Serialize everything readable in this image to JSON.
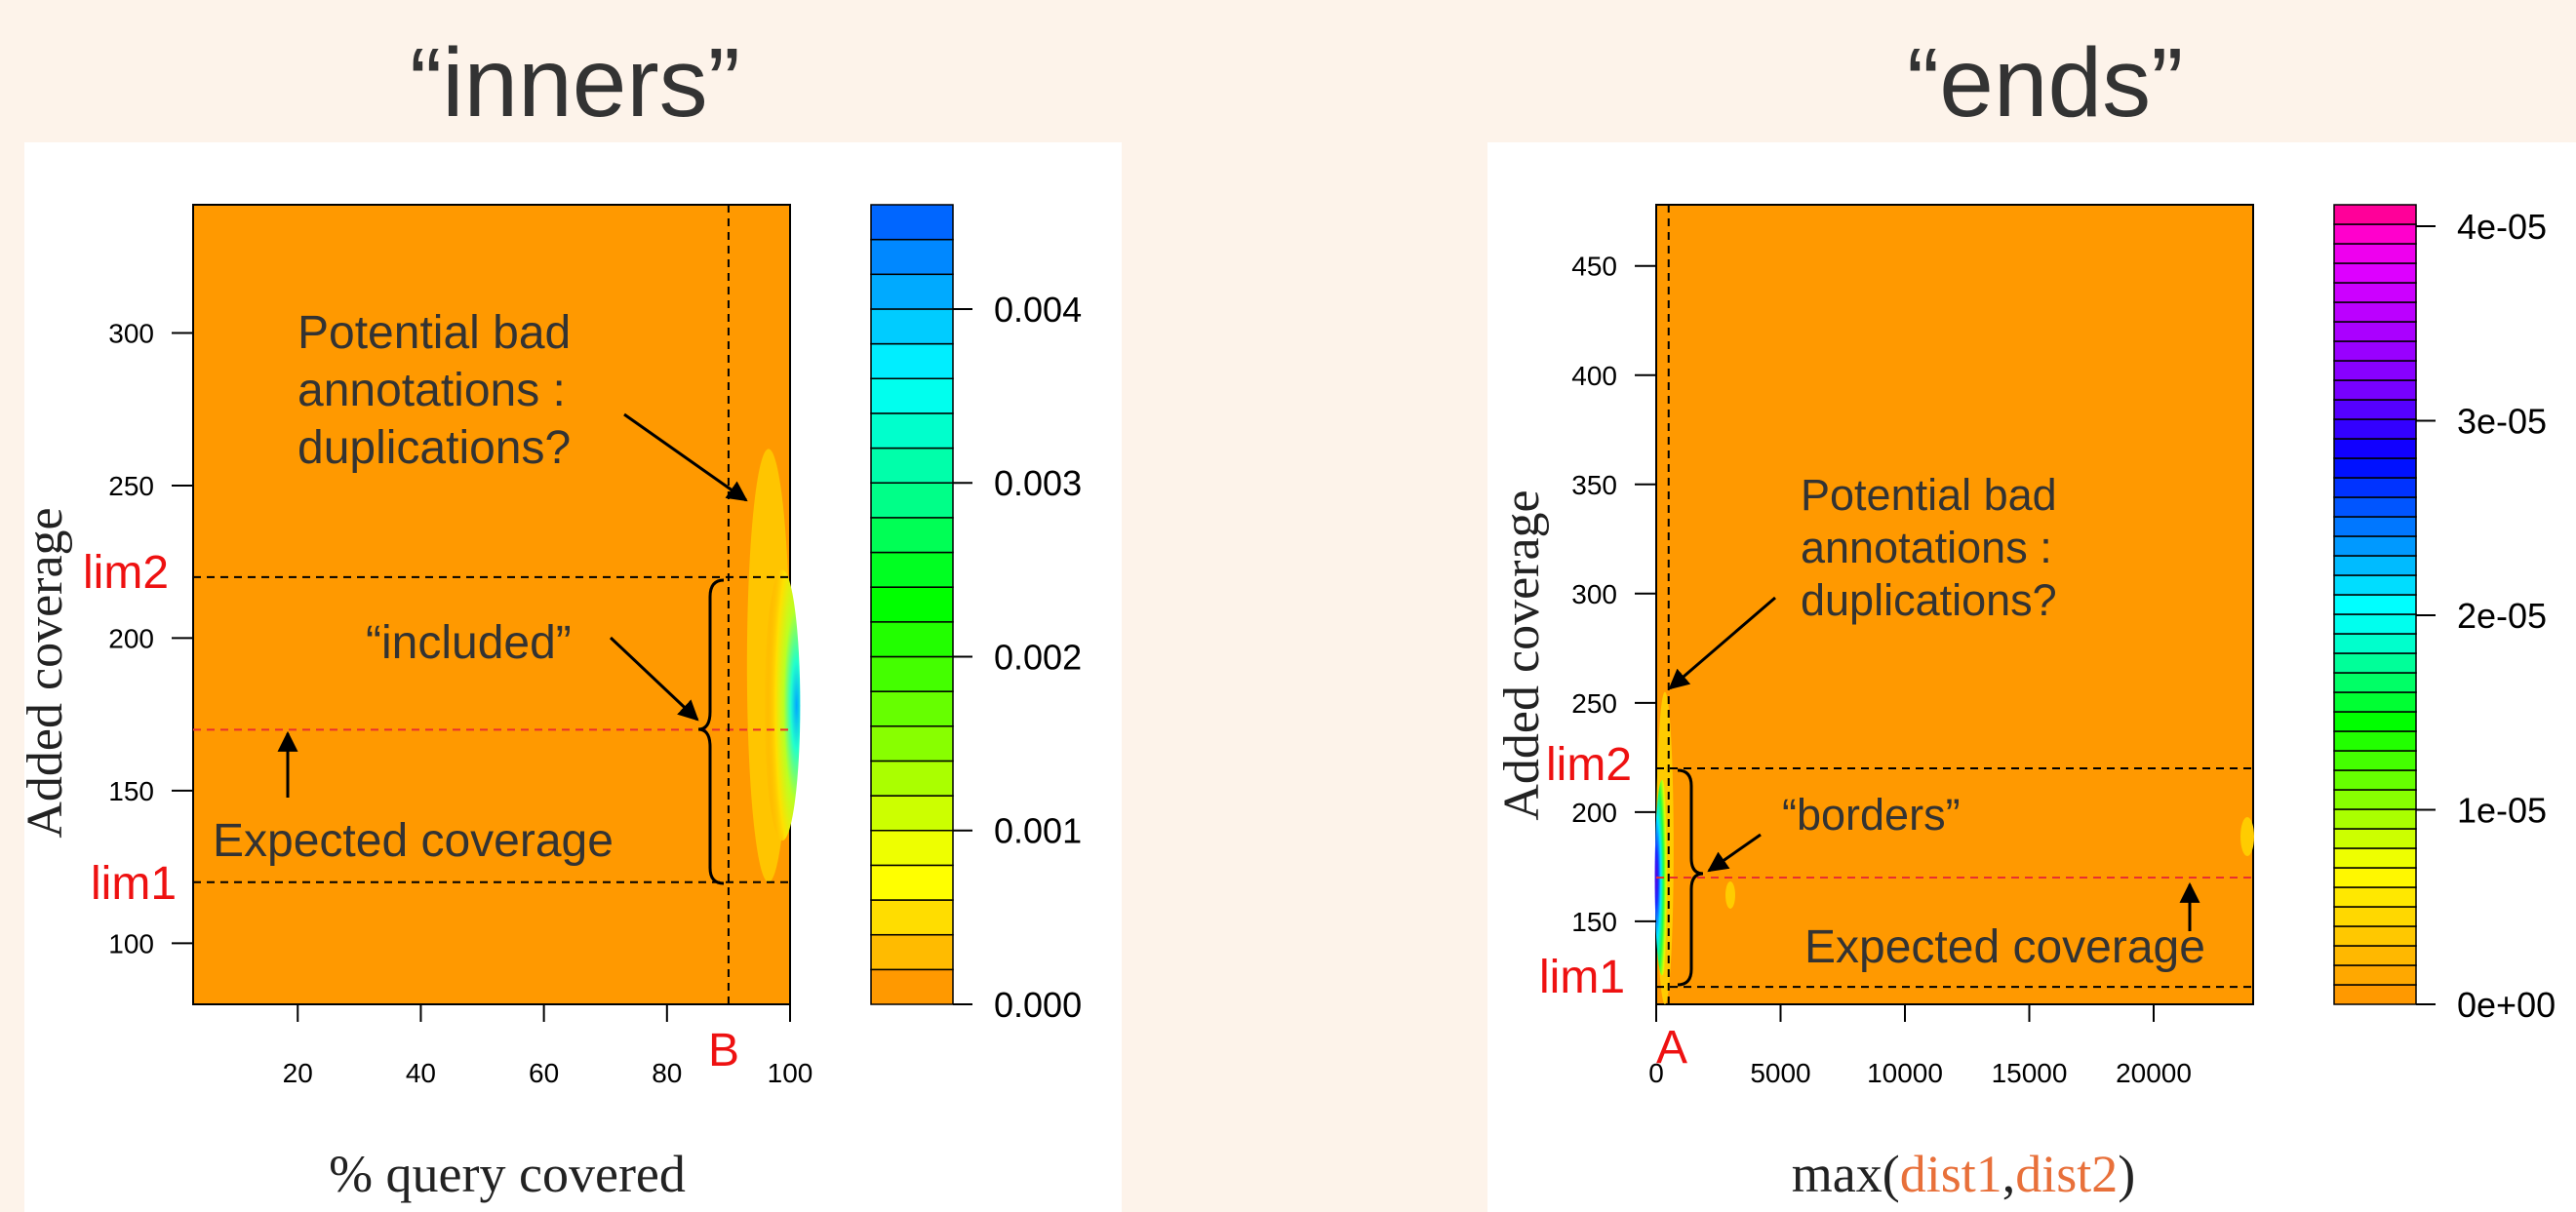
{
  "chart_data": [
    {
      "type": "heatmap",
      "title": "“inners”",
      "xlabel": "% query covered",
      "ylabel": "Added coverage",
      "xlim": [
        3,
        100
      ],
      "ylim": [
        80,
        342
      ],
      "x_ticks": [
        20,
        40,
        60,
        80,
        100
      ],
      "y_ticks": [
        100,
        150,
        200,
        250,
        300
      ],
      "background_level": 0.0,
      "density_ridge": {
        "x_range": [
          93,
          100
        ],
        "y_range": [
          120,
          262
        ],
        "peak": [
          100,
          178
        ],
        "peak_value": 0.0032
      },
      "colorbar": {
        "ticks": [
          0.0,
          0.001,
          0.002,
          0.003,
          0.004
        ],
        "tick_labels": [
          "0.000",
          "0.001",
          "0.002",
          "0.003",
          "0.004"
        ],
        "range": [
          0,
          0.0046
        ],
        "levels": 23,
        "palette": [
          "#ff9900",
          "#ffbb00",
          "#ffdd00",
          "#ffff00",
          "#eeff00",
          "#ccff00",
          "#aaff00",
          "#88ff00",
          "#66ff00",
          "#44ff00",
          "#22ff00",
          "#00ff00",
          "#00ff22",
          "#00ff55",
          "#00ff88",
          "#00ffaa",
          "#00ffcc",
          "#00ffee",
          "#00eeff",
          "#00ccff",
          "#00aaff",
          "#0088ff",
          "#0066ff"
        ]
      },
      "reference_lines": {
        "lim1": 120,
        "lim2": 220,
        "expected_coverage": 170,
        "B": 90
      },
      "labels": {
        "lim1": "lim1",
        "lim2": "lim2",
        "marker": "B",
        "expected": "Expected coverage",
        "included": "“included”",
        "bad_1": "Potential bad",
        "bad_2": "annotations :",
        "bad_3": "duplications?"
      }
    },
    {
      "type": "heatmap",
      "title": "“ends”",
      "xlabel_parts": [
        "max(",
        "dist1",
        ",",
        "dist2",
        ")"
      ],
      "ylabel": "Added coverage",
      "xlim": [
        0,
        24000
      ],
      "ylim": [
        112,
        478
      ],
      "x_ticks": [
        0,
        5000,
        10000,
        15000,
        20000
      ],
      "y_ticks": [
        150,
        200,
        250,
        300,
        350,
        400,
        450
      ],
      "background_level": 0.0,
      "density_ridge": {
        "x_range": [
          0,
          700
        ],
        "y_range": [
          112,
          255
        ],
        "peak": [
          0,
          170
        ],
        "peak_value": 3.8e-05
      },
      "colorbar": {
        "ticks": [
          0,
          1e-05,
          2e-05,
          3e-05,
          4e-05
        ],
        "tick_labels": [
          "0e+00",
          "1e-05",
          "2e-05",
          "3e-05",
          "4e-05"
        ],
        "range": [
          0,
          4.11e-05
        ],
        "levels": 41,
        "palette": [
          "#ff9900",
          "#ffa800",
          "#ffb800",
          "#ffc800",
          "#ffd800",
          "#ffe800",
          "#fff800",
          "#eeff00",
          "#ccff00",
          "#aaff00",
          "#88ff00",
          "#66ff00",
          "#44ff00",
          "#22ff00",
          "#00ff00",
          "#00ff33",
          "#00ff66",
          "#00ff99",
          "#00ffcc",
          "#00ffee",
          "#00ffff",
          "#00ddff",
          "#00bbff",
          "#0099ff",
          "#0077ff",
          "#0055ff",
          "#0033ff",
          "#0011ff",
          "#1100ff",
          "#3300ff",
          "#5500ff",
          "#7700ff",
          "#8800ff",
          "#9900ff",
          "#aa00ff",
          "#bb00ff",
          "#cc00ff",
          "#dd00ff",
          "#ee00ee",
          "#ff00cc",
          "#ff0099"
        ]
      },
      "reference_lines": {
        "lim1": 120,
        "lim2": 220,
        "expected_coverage": 170,
        "A": 500
      },
      "labels": {
        "lim1": "lim1",
        "lim2": "lim2",
        "marker": "A",
        "expected": "Expected coverage",
        "borders": "“borders”",
        "bad_1": "Potential bad",
        "bad_2": "annotations :",
        "bad_3": "duplications?"
      }
    }
  ],
  "colors": {
    "background": "#fdf3ea",
    "plot_fill": "#ff9900",
    "annotation_red": "#ee1111",
    "dist_orange": "#e8703a",
    "expected_line": "#e83030"
  }
}
